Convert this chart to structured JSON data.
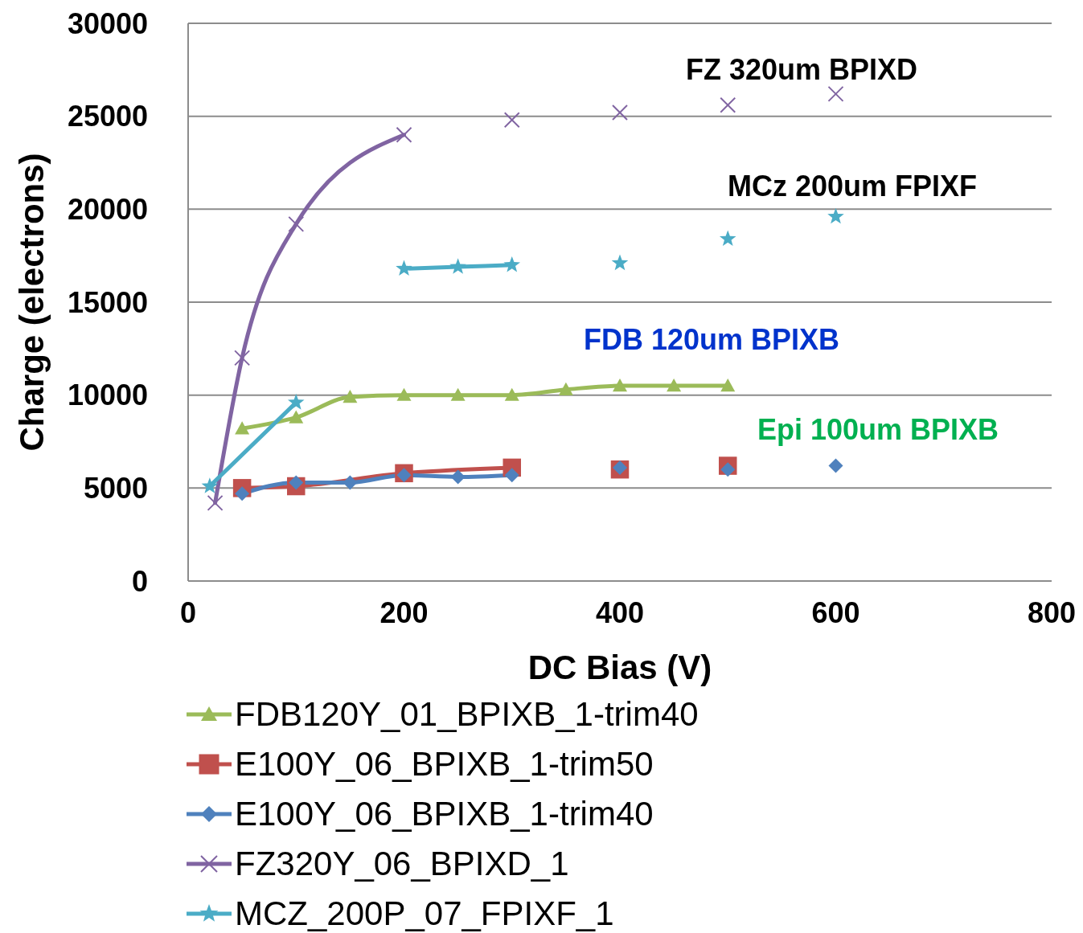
{
  "chart_data": {
    "type": "line",
    "xlabel": "DC Bias (V)",
    "ylabel": "Charge (electrons)",
    "xlim": [
      0,
      800
    ],
    "xticks": [
      0,
      200,
      400,
      600,
      800
    ],
    "ylim": [
      0,
      30000
    ],
    "yticks": [
      0,
      5000,
      10000,
      15000,
      20000,
      25000,
      30000
    ],
    "grid": "y",
    "legend": "bottom",
    "line_style": "solid",
    "series": [
      {
        "name": "FDB120Y_01_BPIXB_1-trim40",
        "marker": "triangle",
        "color": "#9bbb59",
        "x": [
          50,
          100,
          150,
          200,
          250,
          300,
          350,
          400,
          450,
          500
        ],
        "values": [
          8200,
          8800,
          9900,
          10000,
          10000,
          10000,
          10300,
          10500,
          10500,
          10500
        ]
      },
      {
        "name": "E100Y_06_BPIXB_1-trim50",
        "marker": "square",
        "color": "#c0504d",
        "x": [
          50,
          100,
          200,
          300
        ],
        "values": [
          5000,
          5100,
          5800,
          6100
        ]
      },
      {
        "type": "scatter",
        "marker": "square",
        "color": "#c0504d",
        "x": [
          400,
          500
        ],
        "values": [
          6000,
          6200
        ]
      },
      {
        "name": "E100Y_06_BPIXB_1-trim40",
        "marker": "diamond",
        "color": "#4f81bd",
        "x": [
          50,
          100,
          150,
          200,
          250,
          300
        ],
        "values": [
          4700,
          5300,
          5300,
          5700,
          5600,
          5700
        ]
      },
      {
        "type": "scatter",
        "marker": "diamond",
        "color": "#4f81bd",
        "x": [
          400,
          500,
          600
        ],
        "values": [
          6100,
          6000,
          6200
        ]
      },
      {
        "name": "FZ320Y_06_BPIXD_1",
        "marker": "cross",
        "color": "#8064a2",
        "x": [
          25,
          50,
          100,
          200
        ],
        "values": [
          4200,
          12000,
          19200,
          24000
        ]
      },
      {
        "type": "scatter",
        "marker": "cross",
        "color": "#8064a2",
        "x": [
          300,
          400,
          500,
          600
        ],
        "values": [
          24800,
          25200,
          25600,
          26200
        ]
      },
      {
        "name": "MCZ_200P_07_FPIXF_1",
        "marker": "star",
        "color": "#4bacc6",
        "x": [
          20,
          100
        ],
        "values": [
          5100,
          9600
        ]
      },
      {
        "marker": "star",
        "color": "#4bacc6",
        "x": [
          200,
          250,
          300
        ],
        "values": [
          16800,
          16900,
          17000
        ]
      },
      {
        "type": "scatter",
        "marker": "star",
        "color": "#4bacc6",
        "x": [
          400,
          500,
          600
        ],
        "values": [
          17100,
          18400,
          19600
        ]
      }
    ],
    "annotations": [
      "FZ 320um BPIXD",
      "MCz 200um FPIXF",
      "FDB 120um BPIXB",
      "Epi 100um BPIXB"
    ]
  }
}
